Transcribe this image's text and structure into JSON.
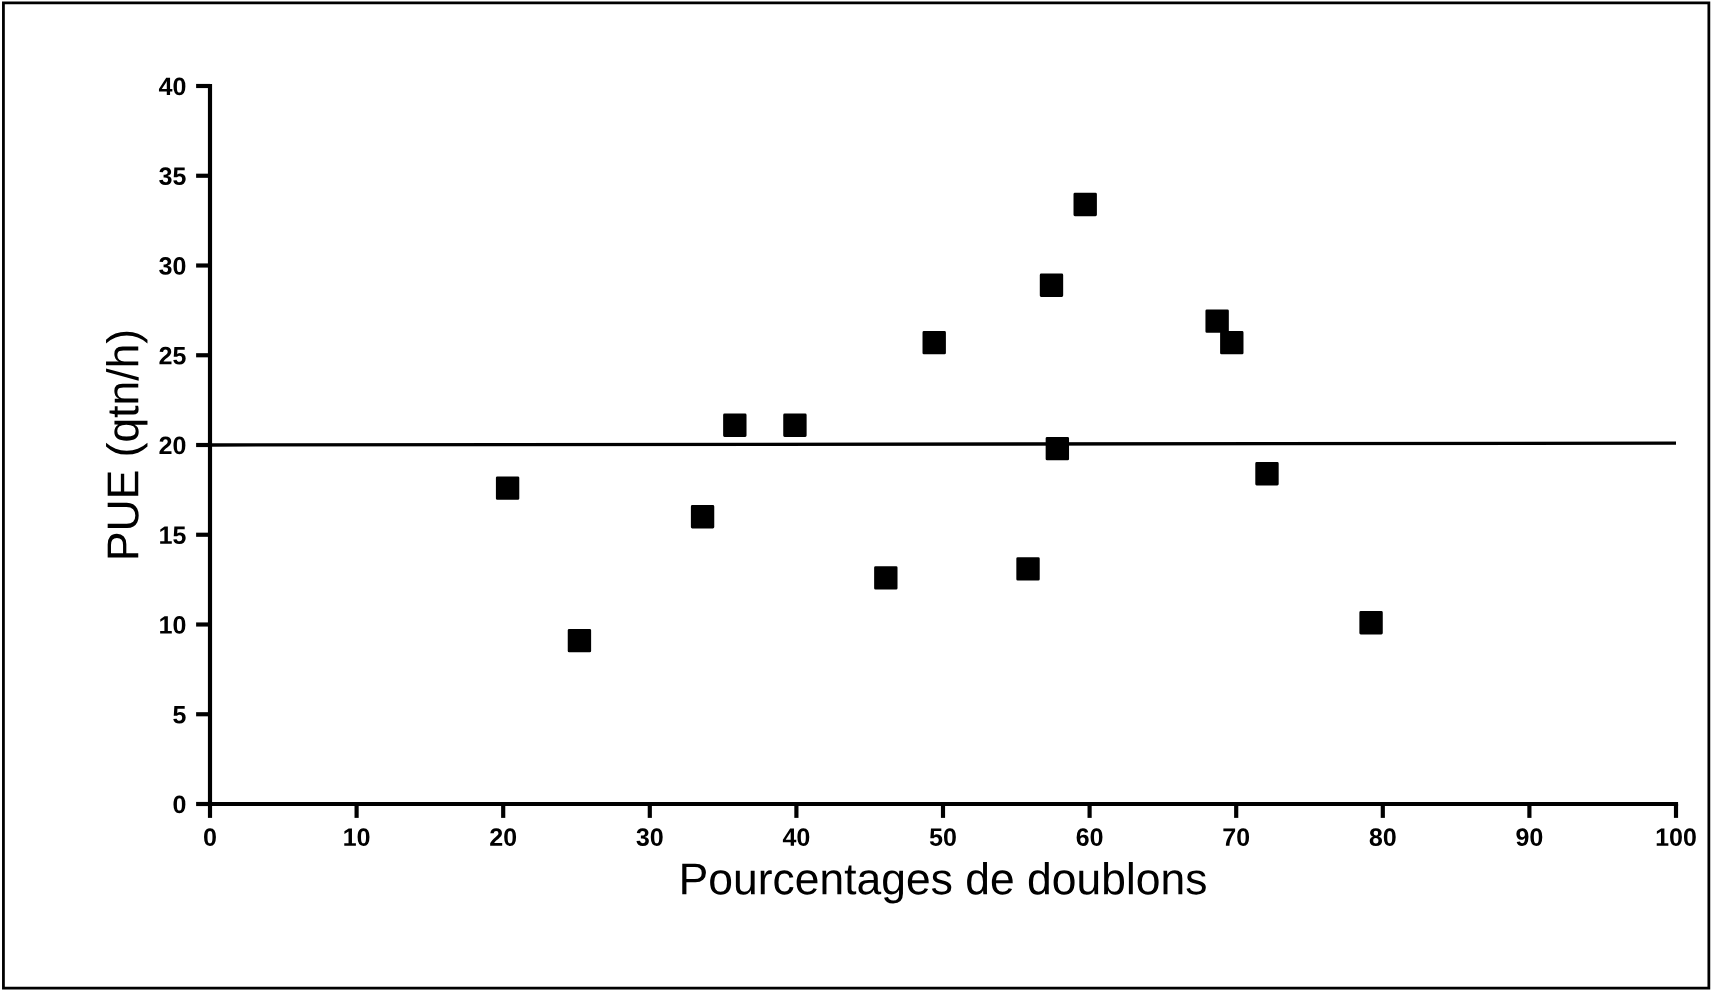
{
  "chart_data": {
    "type": "scatter",
    "xlabel": "Pourcentages de doublons",
    "ylabel": "PUE (qtn/h)",
    "xlim": [
      0,
      100
    ],
    "xticks": [
      0,
      10,
      20,
      30,
      40,
      50,
      60,
      70,
      80,
      90,
      100
    ],
    "ylim": [
      0,
      40
    ],
    "yticks": [
      0,
      5,
      10,
      15,
      20,
      25,
      30,
      35,
      40
    ],
    "grid": false,
    "legend": false,
    "series": [
      {
        "marker": "square",
        "color": "#000000",
        "x": [
          20.3,
          25.2,
          33.6,
          35.8,
          39.9,
          46.1,
          49.4,
          59.7,
          57.4,
          68.7,
          69.7,
          57.8,
          72.1,
          55.8,
          79.2
        ],
        "values": [
          17.6,
          9.1,
          16.0,
          21.1,
          21.1,
          12.6,
          25.7,
          33.4,
          28.9,
          26.9,
          25.7,
          19.8,
          18.4,
          13.1,
          10.1
        ]
      },
      {
        "type": "line",
        "color": "#000000",
        "x": [
          0,
          100
        ],
        "values": [
          20.0,
          20.1
        ]
      }
    ]
  }
}
